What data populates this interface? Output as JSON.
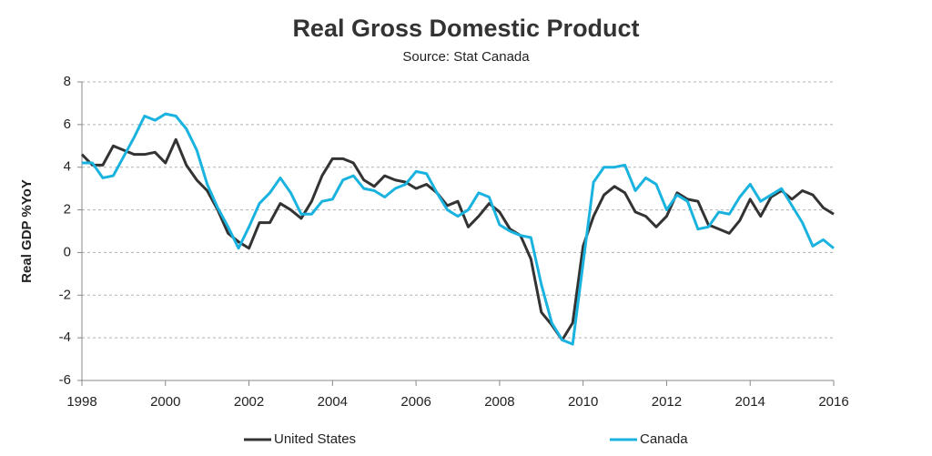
{
  "chart_data": {
    "type": "line",
    "title": "Real Gross Domestic Product",
    "subtitle": "Source: Stat Canada",
    "y_label": "Real GDP %YoY",
    "x": [
      1998,
      1998.25,
      1998.5,
      1998.75,
      1999,
      1999.25,
      1999.5,
      1999.75,
      2000,
      2000.25,
      2000.5,
      2000.75,
      2001,
      2001.25,
      2001.5,
      2001.75,
      2002,
      2002.25,
      2002.5,
      2002.75,
      2003,
      2003.25,
      2003.5,
      2003.75,
      2004,
      2004.25,
      2004.5,
      2004.75,
      2005,
      2005.25,
      2005.5,
      2005.75,
      2006,
      2006.25,
      2006.5,
      2006.75,
      2007,
      2007.25,
      2007.5,
      2007.75,
      2008,
      2008.25,
      2008.5,
      2008.75,
      2009,
      2009.25,
      2009.5,
      2009.75,
      2010,
      2010.25,
      2010.5,
      2010.75,
      2011,
      2011.25,
      2011.5,
      2011.75,
      2012,
      2012.25,
      2012.5,
      2012.75,
      2013,
      2013.25,
      2013.5,
      2013.75,
      2014,
      2014.25,
      2014.5,
      2014.75,
      2015,
      2015.25,
      2015.5,
      2015.75,
      2016
    ],
    "series": [
      {
        "name": "United States",
        "color": "#333333",
        "values": [
          4.6,
          4.1,
          4.1,
          5.0,
          4.8,
          4.6,
          4.6,
          4.7,
          4.2,
          5.3,
          4.1,
          3.4,
          2.9,
          2.0,
          0.9,
          0.5,
          0.2,
          1.4,
          1.4,
          2.3,
          2.0,
          1.6,
          2.4,
          3.6,
          4.4,
          4.4,
          4.2,
          3.4,
          3.1,
          3.6,
          3.4,
          3.3,
          3.0,
          3.2,
          2.8,
          2.2,
          2.4,
          1.2,
          1.7,
          2.3,
          1.9,
          1.1,
          0.8,
          -0.3,
          -2.8,
          -3.4,
          -4.1,
          -3.3,
          0.3,
          1.7,
          2.7,
          3.1,
          2.8,
          1.9,
          1.7,
          1.2,
          1.7,
          2.8,
          2.5,
          2.4,
          1.3,
          1.1,
          0.9,
          1.5,
          2.5,
          1.7,
          2.6,
          2.9,
          2.5,
          2.9,
          2.7,
          2.1,
          1.8
        ]
      },
      {
        "name": "Canada",
        "color": "#1ab3e0",
        "values": [
          4.2,
          4.2,
          3.5,
          3.6,
          4.5,
          5.4,
          6.4,
          6.2,
          6.5,
          6.4,
          5.8,
          4.8,
          3.2,
          2.1,
          1.2,
          0.2,
          1.2,
          2.3,
          2.8,
          3.5,
          2.8,
          1.8,
          1.8,
          2.4,
          2.5,
          3.4,
          3.6,
          3.0,
          2.9,
          2.6,
          3.0,
          3.2,
          3.8,
          3.7,
          2.8,
          2.0,
          1.7,
          2.0,
          2.8,
          2.6,
          1.3,
          1.0,
          0.8,
          0.7,
          -1.5,
          -3.3,
          -4.1,
          -4.3,
          -0.5,
          3.3,
          4.0,
          4.0,
          4.1,
          2.9,
          3.5,
          3.2,
          2.0,
          2.7,
          2.4,
          1.1,
          1.2,
          1.9,
          1.8,
          2.6,
          3.2,
          2.4,
          2.7,
          3.0,
          2.2,
          1.4,
          0.3,
          0.6,
          0.2
        ]
      }
    ],
    "xlim": [
      1998,
      2016
    ],
    "xticks": [
      1998,
      2000,
      2002,
      2004,
      2006,
      2008,
      2010,
      2012,
      2014,
      2016
    ],
    "ylim": [
      -6,
      8
    ],
    "yticks": [
      -6,
      -4,
      -2,
      0,
      2,
      4,
      6,
      8
    ],
    "grid": true,
    "legend": "bottom"
  }
}
